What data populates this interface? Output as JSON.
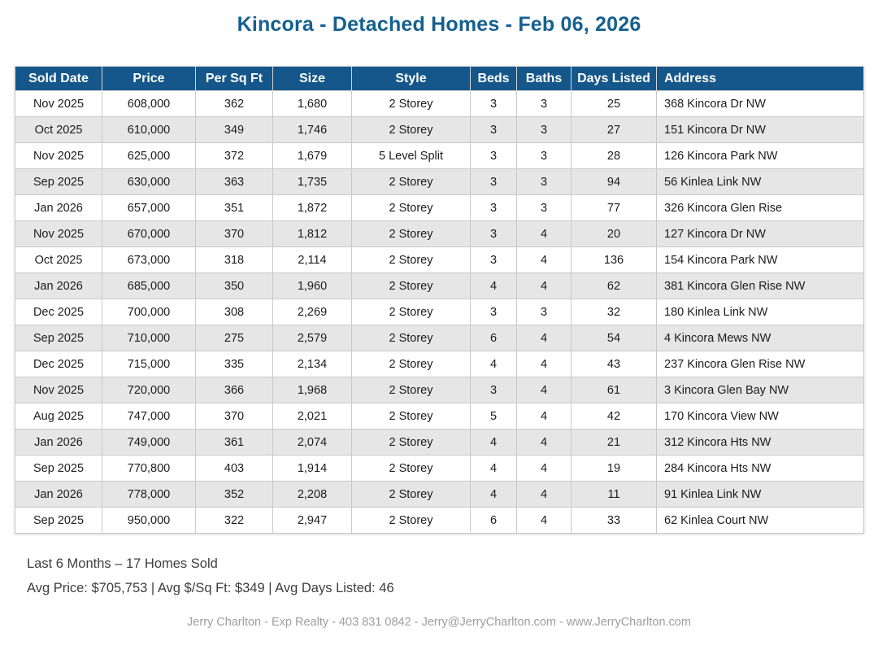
{
  "page_title": "Kincora - Detached Homes - Feb 06, 2026",
  "chart_data": {
    "type": "table",
    "title": "Kincora - Detached Homes - Feb 06, 2026",
    "columns": [
      "Sold Date",
      "Price",
      "Per Sq Ft",
      "Size",
      "Style",
      "Beds",
      "Baths",
      "Days Listed",
      "Address"
    ],
    "rows": [
      [
        "Nov 2025",
        "608,000",
        "362",
        "1,680",
        "2 Storey",
        "3",
        "3",
        "25",
        "368 Kincora Dr NW"
      ],
      [
        "Oct 2025",
        "610,000",
        "349",
        "1,746",
        "2 Storey",
        "3",
        "3",
        "27",
        "151 Kincora Dr NW"
      ],
      [
        "Nov 2025",
        "625,000",
        "372",
        "1,679",
        "5 Level Split",
        "3",
        "3",
        "28",
        "126 Kincora Park NW"
      ],
      [
        "Sep 2025",
        "630,000",
        "363",
        "1,735",
        "2 Storey",
        "3",
        "3",
        "94",
        "56 Kinlea Link NW"
      ],
      [
        "Jan 2026",
        "657,000",
        "351",
        "1,872",
        "2 Storey",
        "3",
        "3",
        "77",
        "326 Kincora Glen Rise"
      ],
      [
        "Nov 2025",
        "670,000",
        "370",
        "1,812",
        "2 Storey",
        "3",
        "4",
        "20",
        "127 Kincora Dr NW"
      ],
      [
        "Oct 2025",
        "673,000",
        "318",
        "2,114",
        "2 Storey",
        "3",
        "4",
        "136",
        "154 Kincora Park NW"
      ],
      [
        "Jan 2026",
        "685,000",
        "350",
        "1,960",
        "2 Storey",
        "4",
        "4",
        "62",
        "381 Kincora Glen Rise NW"
      ],
      [
        "Dec 2025",
        "700,000",
        "308",
        "2,269",
        "2 Storey",
        "3",
        "3",
        "32",
        "180 Kinlea Link NW"
      ],
      [
        "Sep 2025",
        "710,000",
        "275",
        "2,579",
        "2 Storey",
        "6",
        "4",
        "54",
        "4 Kincora Mews NW"
      ],
      [
        "Dec 2025",
        "715,000",
        "335",
        "2,134",
        "2 Storey",
        "4",
        "4",
        "43",
        "237 Kincora Glen Rise NW"
      ],
      [
        "Nov 2025",
        "720,000",
        "366",
        "1,968",
        "2 Storey",
        "3",
        "4",
        "61",
        "3 Kincora Glen Bay NW"
      ],
      [
        "Aug 2025",
        "747,000",
        "370",
        "2,021",
        "2 Storey",
        "5",
        "4",
        "42",
        "170 Kincora View NW"
      ],
      [
        "Jan 2026",
        "749,000",
        "361",
        "2,074",
        "2 Storey",
        "4",
        "4",
        "21",
        "312 Kincora Hts NW"
      ],
      [
        "Sep 2025",
        "770,800",
        "403",
        "1,914",
        "2 Storey",
        "4",
        "4",
        "19",
        "284 Kincora Hts NW"
      ],
      [
        "Jan 2026",
        "778,000",
        "352",
        "2,208",
        "2 Storey",
        "4",
        "4",
        "11",
        "91 Kinlea Link NW"
      ],
      [
        "Sep 2025",
        "950,000",
        "322",
        "2,947",
        "2 Storey",
        "6",
        "4",
        "33",
        "62 Kinlea Court NW"
      ]
    ]
  },
  "summary": {
    "homes_sold_line": "Last 6 Months – 17 Homes Sold",
    "averages_line": "Avg Price: $705,753 | Avg $/Sq Ft: $349 | Avg Days Listed: 46"
  },
  "footer": {
    "credit_line": "Jerry Charlton - Exp Realty - 403 831 0842 - Jerry@JerryCharlton.com - www.JerryCharlton.com"
  },
  "colors": {
    "title_text": "#15608f",
    "header_bg": "#15578a",
    "header_text": "#ffffff",
    "row_alt_bg": "#e6e6e6",
    "border": "#c9c9c9",
    "body_text": "#1c1c1c",
    "summary_text": "#3d3d3d",
    "credit_text": "#9e9e9e"
  }
}
